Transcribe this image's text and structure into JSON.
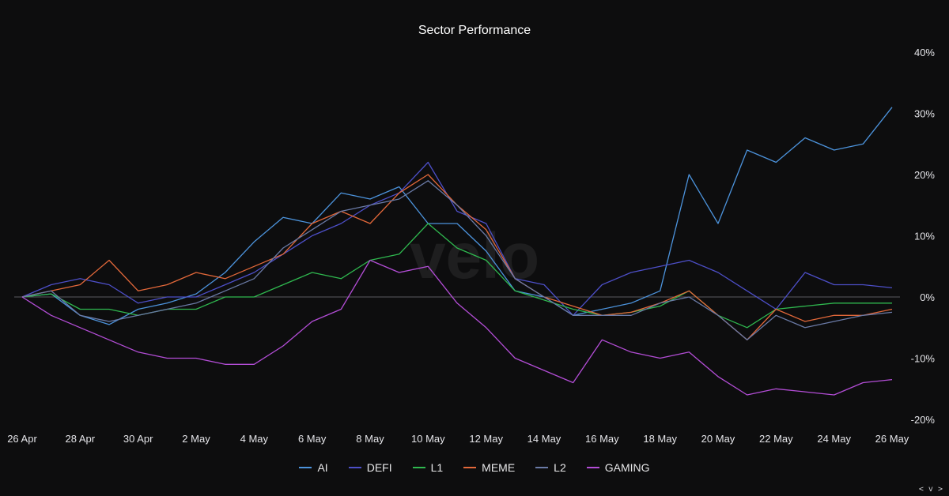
{
  "chart_data": {
    "type": "line",
    "title": "Sector Performance",
    "watermark": "velo",
    "x_ticks": [
      "26 Apr",
      "28 Apr",
      "30 Apr",
      "2 May",
      "4 May",
      "6 May",
      "8 May",
      "10 May",
      "12 May",
      "14 May",
      "16 May",
      "18 May",
      "20 May",
      "22 May",
      "24 May",
      "26 May"
    ],
    "y_ticks": [
      "40%",
      "30%",
      "20%",
      "10%",
      "0%",
      "-10%",
      "-20%"
    ],
    "ylim": [
      -20,
      40
    ],
    "y_unit": "%",
    "x_range": [
      0,
      30
    ],
    "x": [
      0,
      1,
      2,
      3,
      4,
      5,
      6,
      7,
      8,
      9,
      10,
      11,
      12,
      13,
      14,
      15,
      16,
      17,
      18,
      19,
      20,
      21,
      22,
      23,
      24,
      25,
      26,
      27,
      28,
      29,
      30
    ],
    "series": [
      {
        "name": "AI",
        "color": "#4c93dc",
        "values": [
          0,
          0.5,
          -3,
          -4.5,
          -2,
          -1,
          0.5,
          4,
          9,
          13,
          12,
          17,
          16,
          18,
          12,
          12,
          7.5,
          1,
          0,
          -3,
          -2,
          -1,
          1,
          20,
          12,
          24,
          22,
          26,
          24,
          25,
          31
        ]
      },
      {
        "name": "DEFI",
        "color": "#4d4fc8",
        "values": [
          0,
          2,
          3,
          2,
          -1,
          0,
          0,
          2,
          4,
          7,
          10,
          12,
          15,
          17,
          22,
          14,
          12,
          3,
          2,
          -3,
          2,
          4,
          5,
          6,
          4,
          1,
          -2,
          4,
          2,
          2,
          1.5
        ]
      },
      {
        "name": "L1",
        "color": "#2fb84f",
        "values": [
          0,
          0.5,
          -2,
          -2,
          -3,
          -2,
          -2,
          0,
          0,
          2,
          4,
          3,
          6,
          7,
          12,
          8,
          6,
          1,
          -0.5,
          -2,
          -3,
          -2.5,
          -1.5,
          1,
          -3,
          -5,
          -2,
          -1.5,
          -1,
          -1,
          -1
        ]
      },
      {
        "name": "MEME",
        "color": "#e3683a",
        "values": [
          0,
          1,
          2,
          6,
          1,
          2,
          4,
          3,
          5,
          7,
          12,
          14,
          12,
          17,
          20,
          15,
          11,
          3,
          0,
          -1.5,
          -3,
          -2.5,
          -1,
          1,
          -3,
          -7,
          -2,
          -4,
          -3,
          -3,
          -2
        ]
      },
      {
        "name": "L2",
        "color": "#6a7aa6",
        "values": [
          0,
          1,
          -3,
          -4,
          -3,
          -2,
          -1,
          1,
          3,
          8,
          11,
          14,
          15,
          16,
          19,
          15,
          10,
          3,
          0,
          -3,
          -3,
          -3,
          -1,
          0,
          -3,
          -7,
          -3,
          -5,
          -4,
          -3,
          -2.5
        ]
      },
      {
        "name": "GAMING",
        "color": "#b34dd6",
        "values": [
          0,
          -3,
          -5,
          -7,
          -9,
          -10,
          -10,
          -11,
          -11,
          -8,
          -4,
          -2,
          6,
          4,
          5,
          -1,
          -5,
          -10,
          -12,
          -14,
          -7,
          -9,
          -10,
          -9,
          -13,
          -16,
          -15,
          -15.5,
          -16,
          -14,
          -13.5
        ]
      }
    ],
    "grid": false,
    "zero_line": true,
    "legend_position": "bottom-center"
  },
  "nav_hint": "< v >"
}
